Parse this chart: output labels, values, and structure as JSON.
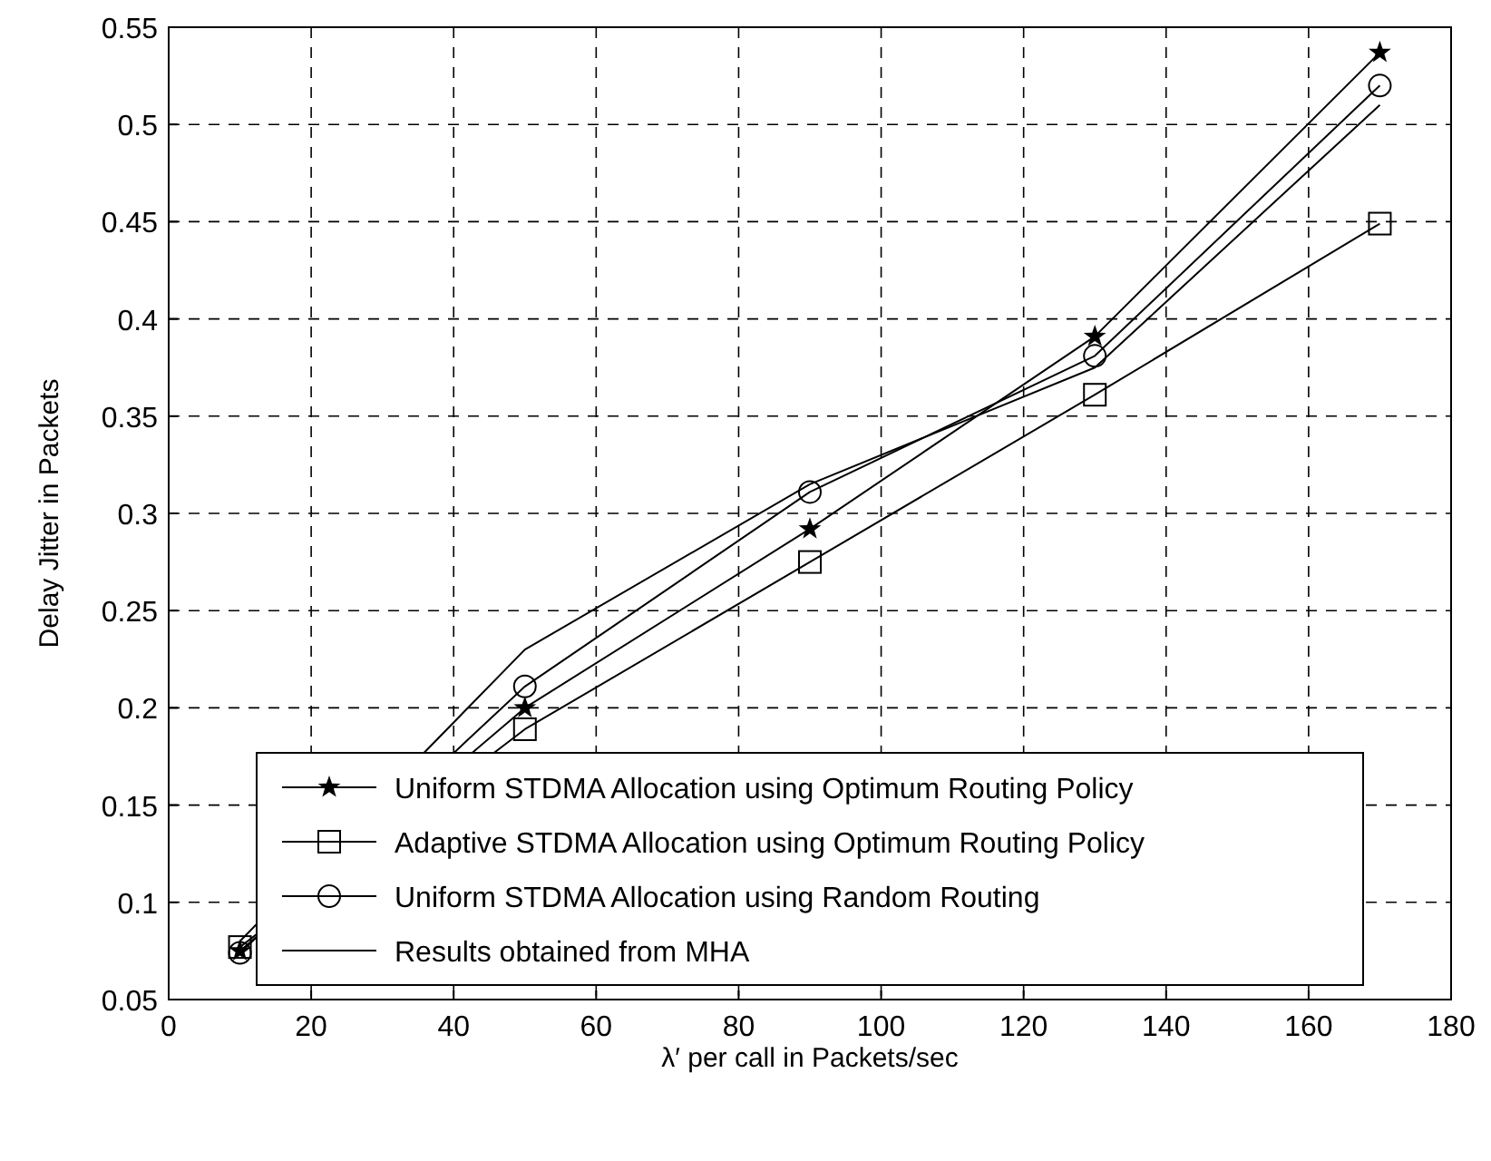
{
  "chart_data": {
    "type": "line",
    "xlabel": "λ′ per call in Packets/sec",
    "ylabel": "Delay Jitter in Packets",
    "x": [
      10,
      50,
      90,
      130,
      170
    ],
    "series": [
      {
        "name": "Uniform STDMA Allocation using Optimum Routing Policy",
        "color": "#000000",
        "marker": "star",
        "values": [
          0.075,
          0.2,
          0.292,
          0.391,
          0.537
        ]
      },
      {
        "name": "Adaptive STDMA Allocation using Optimum Routing Policy",
        "color": "#000000",
        "marker": "square",
        "values": [
          0.077,
          0.189,
          0.275,
          0.361,
          0.449
        ]
      },
      {
        "name": "Uniform STDMA Allocation using Random Routing",
        "color": "#000000",
        "marker": "circle",
        "values": [
          0.074,
          0.211,
          0.311,
          0.381,
          0.52
        ]
      },
      {
        "name": "Results obtained from MHA",
        "color": "#000000",
        "marker": "none",
        "values": [
          0.08,
          0.23,
          0.315,
          0.375,
          0.51
        ]
      }
    ],
    "xlim": [
      0,
      180
    ],
    "xticks": [
      0,
      20,
      40,
      60,
      80,
      100,
      120,
      140,
      160,
      180
    ],
    "ylim": [
      0.05,
      0.55
    ],
    "yticks": [
      0.05,
      0.1,
      0.15,
      0.2,
      0.25,
      0.3,
      0.35,
      0.4,
      0.45,
      0.5,
      0.55
    ],
    "grid": true,
    "legend": "bottom"
  }
}
